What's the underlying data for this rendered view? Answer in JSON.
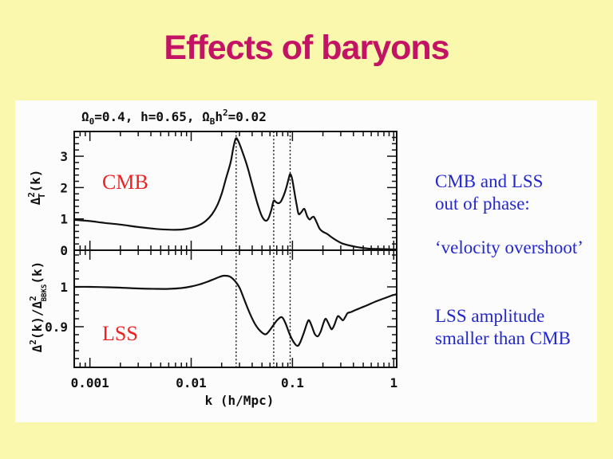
{
  "slide": {
    "title": "Effects of baryons",
    "notes": [
      {
        "lines": [
          "CMB and LSS",
          "out of phase:"
        ]
      },
      {
        "lines": [
          "‘velocity overshoot’"
        ]
      },
      {
        "lines": [
          "LSS amplitude",
          "smaller than CMB"
        ]
      }
    ]
  },
  "colors": {
    "background": "#FAF8AC",
    "panel": "#FCFCFC",
    "title_text": "#C31365",
    "note_text": "#2428CC",
    "curve_label": "#EE2222",
    "plot_ink": "#111111"
  },
  "plot": {
    "header_parts": {
      "p1": "Ω",
      "p2": "0",
      "p3": "=0.4,  h=0.65,  Ω",
      "p4": "B",
      "p5": "h",
      "p6": "2",
      "p7": "=0.02"
    },
    "ylabel_top_parts": {
      "p1": "Δ",
      "p2": "2",
      "p3": "T",
      "p4": "(k)"
    },
    "ylabel_bottom_parts": {
      "p1": "Δ",
      "p2": "2",
      "p3": "(k)/Δ",
      "p4": "2",
      "p5": "BBKS",
      "p6": "(k)"
    },
    "xlabel": "k (h/Mpc)",
    "top_label": "CMB",
    "bottom_label": "LSS"
  },
  "chart_data": [
    {
      "type": "line",
      "panel": "top",
      "title": "Ω₀=0.4, h=0.65, Ω_B h²=0.02",
      "ylabel": "Δ²_T(k)",
      "xscale": "log",
      "xlim": [
        0.0007,
        1.07
      ],
      "ylim": [
        0,
        3.79
      ],
      "yticks": [
        {
          "v": 0,
          "label": "0"
        },
        {
          "v": 1,
          "label": "1"
        },
        {
          "v": 2,
          "label": "2"
        },
        {
          "v": 3,
          "label": "3"
        }
      ],
      "yminor_step": 0.2,
      "vlines": [
        0.0278,
        0.0653,
        0.0949
      ],
      "series": [
        {
          "name": "CMB",
          "x": [
            0.0007,
            0.001,
            0.0014,
            0.002,
            0.003,
            0.0045,
            0.006,
            0.008,
            0.01,
            0.012,
            0.014,
            0.016,
            0.018,
            0.02,
            0.022,
            0.0245,
            0.026,
            0.0275,
            0.029,
            0.032,
            0.036,
            0.04,
            0.045,
            0.05,
            0.0545,
            0.058,
            0.062,
            0.0653,
            0.069,
            0.073,
            0.077,
            0.082,
            0.087,
            0.092,
            0.0949,
            0.099,
            0.104,
            0.11,
            0.115,
            0.122,
            0.131,
            0.14,
            0.148,
            0.155,
            0.163,
            0.174,
            0.186,
            0.2,
            0.218,
            0.24,
            0.27,
            0.32,
            0.42,
            0.55,
            0.7,
            0.9,
            1.07
          ],
          "y": [
            0.97,
            0.93,
            0.87,
            0.82,
            0.74,
            0.68,
            0.655,
            0.66,
            0.71,
            0.8,
            0.94,
            1.14,
            1.42,
            1.8,
            2.28,
            2.8,
            3.25,
            3.56,
            3.5,
            3.15,
            2.65,
            2.1,
            1.5,
            1.08,
            0.94,
            1.02,
            1.3,
            1.58,
            1.53,
            1.5,
            1.56,
            1.75,
            2.0,
            2.3,
            2.43,
            2.3,
            1.9,
            1.45,
            1.16,
            1.21,
            1.32,
            1.08,
            0.98,
            1.04,
            1.06,
            0.88,
            0.68,
            0.59,
            0.53,
            0.43,
            0.32,
            0.2,
            0.11,
            0.055,
            0.04,
            0.03,
            0.025
          ]
        }
      ]
    },
    {
      "type": "line",
      "panel": "bottom",
      "ylabel": "Δ²(k)/Δ²_BBKS(k)",
      "xlabel": "k (h/Mpc)",
      "xscale": "log",
      "xlim": [
        0.0007,
        1.07
      ],
      "ylim": [
        0.798,
        1.092
      ],
      "yticks": [
        {
          "v": 1.0,
          "label": "1"
        },
        {
          "v": 0.9,
          "label": "0.9"
        }
      ],
      "yminor_step": 0.02,
      "xticks": [
        {
          "v": 0.001,
          "label": "0.001"
        },
        {
          "v": 0.01,
          "label": "0.01"
        },
        {
          "v": 0.1,
          "label": "0.1"
        },
        {
          "v": 1,
          "label": "1"
        }
      ],
      "vlines": [
        0.0278,
        0.0653,
        0.0949
      ],
      "series": [
        {
          "name": "LSS",
          "x": [
            0.0007,
            0.001,
            0.0015,
            0.002,
            0.003,
            0.0045,
            0.006,
            0.008,
            0.01,
            0.012,
            0.0145,
            0.017,
            0.019,
            0.021,
            0.024,
            0.027,
            0.03,
            0.033,
            0.037,
            0.042,
            0.047,
            0.0535,
            0.058,
            0.064,
            0.071,
            0.0784,
            0.085,
            0.095,
            0.105,
            0.1128,
            0.12,
            0.13,
            0.14,
            0.146,
            0.155,
            0.166,
            0.178,
            0.19,
            0.203,
            0.213,
            0.225,
            0.238,
            0.246,
            0.26,
            0.28,
            0.3,
            0.315,
            0.332,
            0.35,
            0.38,
            0.42,
            0.48,
            0.56,
            0.66,
            0.8,
            0.95,
            1.07
          ],
          "y": [
            1.0,
            1.0,
            0.999,
            0.998,
            0.996,
            0.995,
            0.995,
            0.997,
            1.001,
            1.006,
            1.013,
            1.02,
            1.025,
            1.028,
            1.026,
            1.015,
            0.998,
            0.972,
            0.94,
            0.91,
            0.892,
            0.881,
            0.887,
            0.902,
            0.917,
            0.924,
            0.91,
            0.878,
            0.858,
            0.852,
            0.862,
            0.886,
            0.91,
            0.916,
            0.902,
            0.882,
            0.876,
            0.888,
            0.91,
            0.92,
            0.91,
            0.897,
            0.894,
            0.905,
            0.926,
            0.921,
            0.916,
            0.924,
            0.934,
            0.937,
            0.942,
            0.948,
            0.955,
            0.963,
            0.971,
            0.978,
            0.982
          ]
        }
      ]
    }
  ]
}
